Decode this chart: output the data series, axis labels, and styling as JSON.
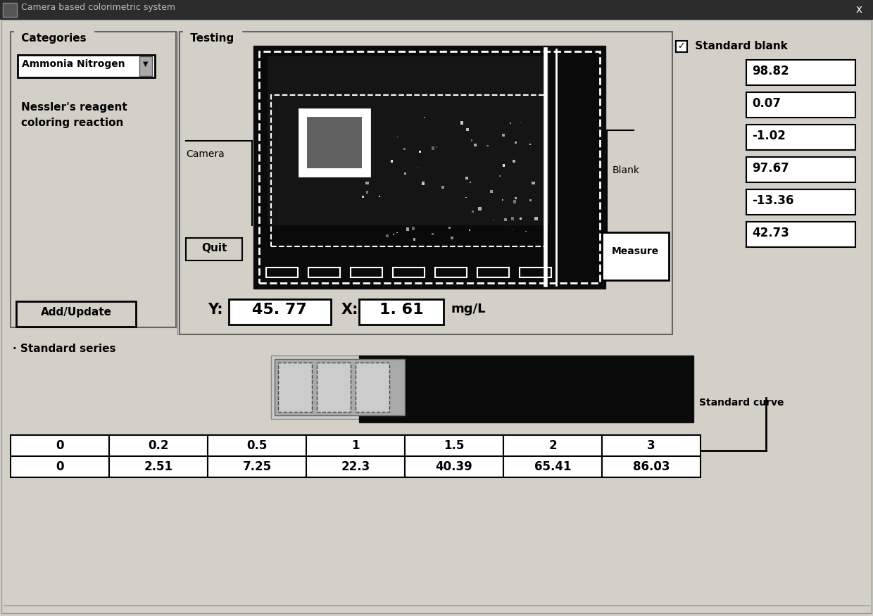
{
  "title": "Camera based colorimetric system",
  "bg_color": "#d4d0c8",
  "titlebar_color": "#2c2c2c",
  "titlebar_text_color": "#bbbbbb",
  "categories_label": "Categories",
  "dropdown_text": "Ammonia Nitrogen",
  "reaction_text": "Nessler's reagent\ncoloring reaction",
  "camera_label": "Camera",
  "quit_label": "Quit",
  "add_update_label": "Add/Update",
  "testing_label": "Testing",
  "blank_label": "Blank",
  "measure_label": "Measure",
  "standard_blank_label": "Standard blank",
  "y_label": "Y:",
  "x_label": "X:",
  "y_value": "45. 77",
  "x_value": "1. 61",
  "unit": "mg/L",
  "right_values": [
    "98.82",
    "0.07",
    "-1.02",
    "97.67",
    "-13.36",
    "42.73"
  ],
  "standard_series_label": "Standard series",
  "standard_curve_label": "Standard curve",
  "table_row1": [
    "0",
    "0.2",
    "0.5",
    "1",
    "1.5",
    "2",
    "3"
  ],
  "table_row2": [
    "0",
    "2.51",
    "7.25",
    "22.3",
    "40.39",
    "65.41",
    "86.03"
  ]
}
